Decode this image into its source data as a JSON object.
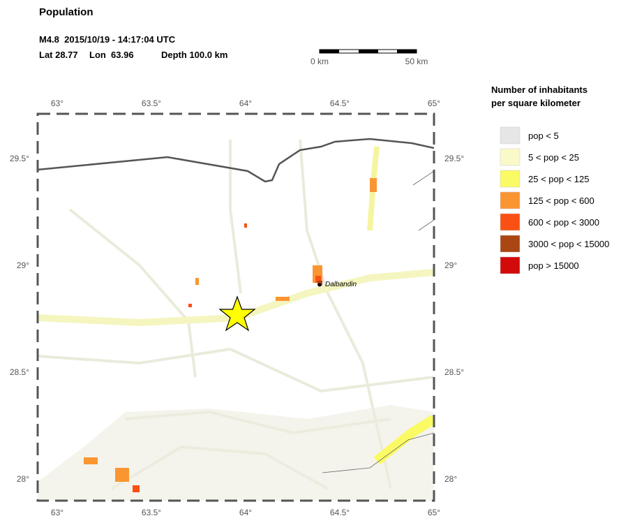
{
  "header": {
    "title": "Population",
    "event": "M4.8  2015/10/19 - 14:17:04 UTC",
    "lat": "Lat 28.77",
    "lon": "Lon  63.96",
    "depth": "Depth 100.0 km"
  },
  "scale_bar": {
    "labels": [
      "0 km",
      "50 km"
    ]
  },
  "map": {
    "lon_ticks": [
      "63°",
      "63.5°",
      "64°",
      "64.5°",
      "65°"
    ],
    "lat_ticks": [
      "29.5°",
      "29°",
      "28.5°",
      "28°"
    ],
    "places": [
      {
        "label": "Dalbandin"
      }
    ]
  },
  "legend": {
    "title": [
      "Number of inhabitants",
      "per square kilometer"
    ],
    "items": [
      {
        "label": "pop < 5",
        "color": "#e6e6e6"
      },
      {
        "label": "5 < pop < 25",
        "color": "#fafac8"
      },
      {
        "label": "25 < pop < 125",
        "color": "#fafa64"
      },
      {
        "label": "125 < pop < 600",
        "color": "#fa9632"
      },
      {
        "label": "600 < pop < 3000",
        "color": "#fa5014"
      },
      {
        "label": "3000 < pop < 15000",
        "color": "#aa4614"
      },
      {
        "label": "pop > 15000",
        "color": "#d20a0a"
      }
    ]
  }
}
